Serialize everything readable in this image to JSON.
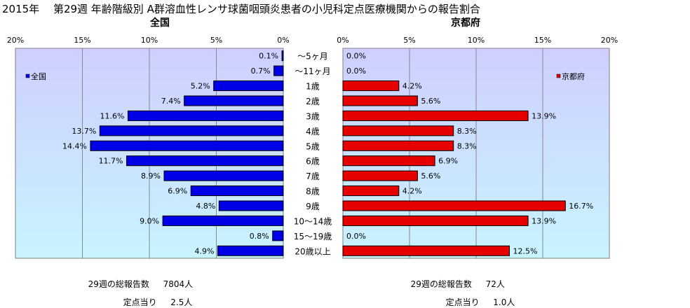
{
  "page": {
    "title": "2015年　 第29週 年齢階級別 A群溶血性レンサ球菌咽頭炎患者の小児科定点医療機関からの報告割合"
  },
  "colors": {
    "left_bar": "#0000e6",
    "right_bar": "#e60000",
    "plot_bg_top": "#cfcfff",
    "plot_bg_bottom": "#c8f4ff"
  },
  "chart_data": [
    {
      "type": "bar",
      "orientation": "horizontal",
      "direction": "right-to-left",
      "title": "全国",
      "series": [
        {
          "name": "全国",
          "values": [
            0.1,
            0.7,
            5.2,
            7.4,
            11.6,
            13.7,
            14.4,
            11.7,
            8.9,
            6.9,
            4.8,
            9.0,
            0.8,
            4.9
          ],
          "labels": [
            "0.1%",
            "0.7%",
            "5.2%",
            "7.4%",
            "11.6%",
            "13.7%",
            "14.4%",
            "11.7%",
            "8.9%",
            "6.9%",
            "4.8%",
            "9.0%",
            "0.8%",
            "4.9%"
          ]
        }
      ],
      "categories": [
        "～5ヶ月",
        "～11ヶ月",
        "1歳",
        "2歳",
        "3歳",
        "4歳",
        "5歳",
        "6歳",
        "7歳",
        "8歳",
        "9歳",
        "10～14歳",
        "15～19歳",
        "20歳以上"
      ],
      "xlim": [
        0,
        20
      ],
      "ticks": [
        "20%",
        "15%",
        "10%",
        "5%",
        "0%"
      ],
      "grid": true,
      "legend": "top-left"
    },
    {
      "type": "bar",
      "orientation": "horizontal",
      "direction": "left-to-right",
      "title": "京都府",
      "series": [
        {
          "name": "京都府",
          "values": [
            0.0,
            0.0,
            4.2,
            5.6,
            13.9,
            8.3,
            8.3,
            6.9,
            5.6,
            4.2,
            16.7,
            13.9,
            0.0,
            12.5
          ],
          "labels": [
            "0.0%",
            "0.0%",
            "4.2%",
            "5.6%",
            "13.9%",
            "8.3%",
            "8.3%",
            "6.9%",
            "5.6%",
            "4.2%",
            "16.7%",
            "13.9%",
            "0.0%",
            "12.5%"
          ]
        }
      ],
      "categories": [
        "～5ヶ月",
        "～11ヶ月",
        "1歳",
        "2歳",
        "3歳",
        "4歳",
        "5歳",
        "6歳",
        "7歳",
        "8歳",
        "9歳",
        "10～14歳",
        "15～19歳",
        "20歳以上"
      ],
      "xlim": [
        0,
        20
      ],
      "ticks": [
        "0%",
        "5%",
        "10%",
        "15%",
        "20%"
      ],
      "grid": true,
      "legend": "top-right"
    }
  ],
  "footer": {
    "left": {
      "total_label": "29週の総報告数",
      "total_value": "7804人",
      "per_label": "定点当り",
      "per_value": "2.5人"
    },
    "right": {
      "total_label": "29週の総報告数",
      "total_value": "72人",
      "per_label": "定点当り",
      "per_value": "1.0人"
    }
  }
}
